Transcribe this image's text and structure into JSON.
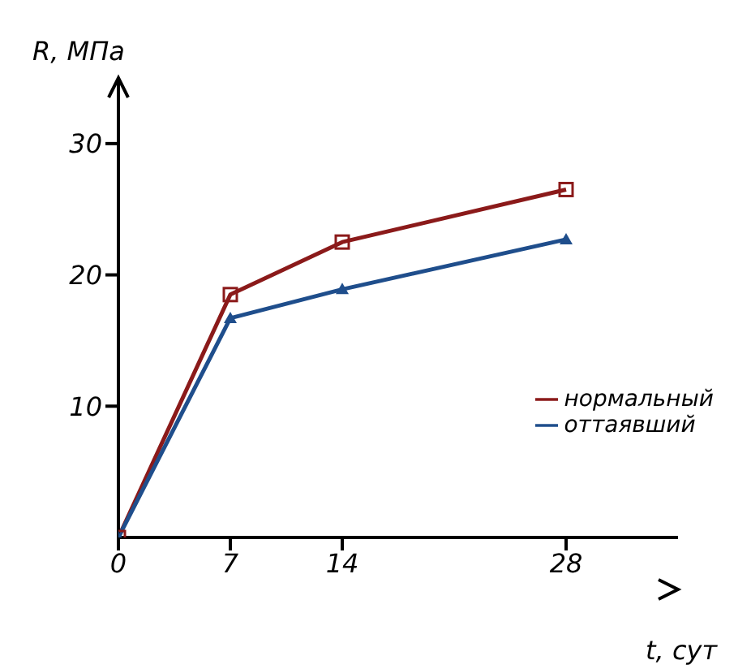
{
  "chart_data": {
    "type": "line",
    "xlabel": "t, сут",
    "ylabel": "R, МПа",
    "x": [
      0,
      7,
      14,
      28
    ],
    "series": [
      {
        "name": "нормальный",
        "color": "#8b1a1a",
        "marker": "square",
        "values": [
          0,
          18.5,
          22.5,
          26.5
        ]
      },
      {
        "name": "оттаявший",
        "color": "#1f4e8c",
        "marker": "triangle",
        "values": [
          0,
          16.7,
          18.9,
          22.7
        ]
      }
    ],
    "xlim": [
      0,
      35
    ],
    "xticks": [
      0,
      7,
      14,
      28
    ],
    "ylim": [
      0,
      35
    ],
    "yticks": [
      10,
      20,
      30
    ],
    "grid": false,
    "legend": "right"
  }
}
